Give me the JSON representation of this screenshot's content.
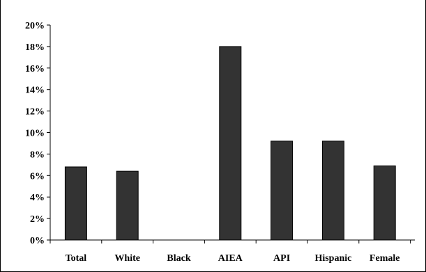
{
  "chart_data": {
    "type": "bar",
    "title": "",
    "xlabel": "",
    "ylabel": "",
    "categories": [
      "Total",
      "White",
      "Black",
      "AIEA",
      "API",
      "Hispanic",
      "Female"
    ],
    "values": [
      6.8,
      6.4,
      0,
      18,
      9.2,
      9.2,
      6.9
    ],
    "ylim": [
      0,
      20
    ],
    "yticks": [
      "0%",
      "2%",
      "4%",
      "6%",
      "8%",
      "10%",
      "12%",
      "14%",
      "16%",
      "18%",
      "20%"
    ],
    "ytick_values": [
      0,
      2,
      4,
      6,
      8,
      10,
      12,
      14,
      16,
      18,
      20
    ],
    "grid": false,
    "legend": "none",
    "bar_color": "#333333"
  }
}
